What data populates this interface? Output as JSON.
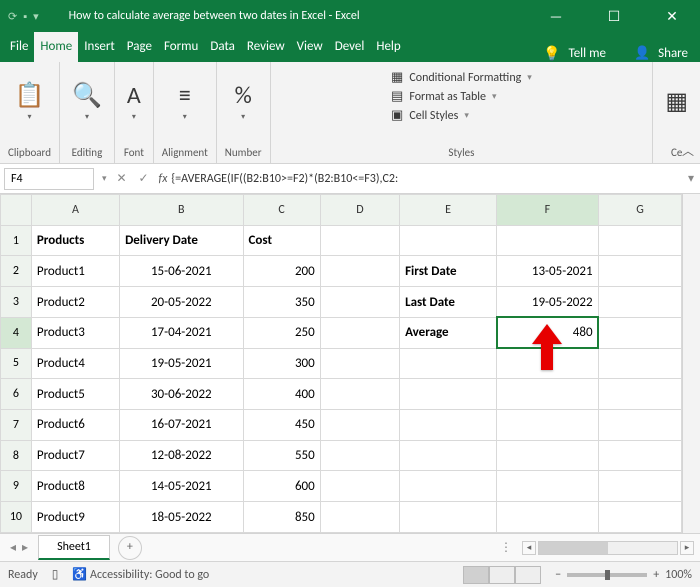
{
  "titlebar": {
    "title": "How to calculate average between two dates in Excel  -  Excel",
    "autosave_icon": "⟳",
    "save_icon": "💾"
  },
  "menubar": {
    "items": [
      "File",
      "Home",
      "Insert",
      "Page",
      "Formu",
      "Data",
      "Review",
      "View",
      "Devel",
      "Help"
    ],
    "active_index": 1,
    "tellme": "Tell me",
    "share": "Share"
  },
  "ribbon": {
    "groups": [
      {
        "label": "Clipboard",
        "icon": "📋"
      },
      {
        "label": "Editing",
        "icon": "🔍"
      },
      {
        "label": "Font",
        "icon": "A"
      },
      {
        "label": "Alignment",
        "icon": "≡"
      },
      {
        "label": "Number",
        "icon": "%"
      }
    ],
    "styles": {
      "cond": "Conditional Formatting",
      "table": "Format as Table",
      "cell": "Cell Styles",
      "label": "Styles"
    },
    "cells_label": "Ce"
  },
  "fxbar": {
    "namebox": "F4",
    "formula": "{=AVERAGE(IF((B2:B10>=F2)*(B2:B10<=F3),C2:"
  },
  "grid": {
    "columns": [
      "A",
      "B",
      "C",
      "D",
      "E",
      "F",
      "G"
    ],
    "col_classes": [
      "col-A",
      "col-B",
      "col-C",
      "col-D",
      "col-E",
      "col-F",
      "col-G"
    ],
    "selected_col": "F",
    "selected_row": 4,
    "data": {
      "headers": {
        "A": "Products",
        "B": "Delivery Date",
        "C": "Cost"
      },
      "rows": [
        {
          "A": "Product1",
          "B": "15-06-2021",
          "C": "200"
        },
        {
          "A": "Product2",
          "B": "20-05-2022",
          "C": "350"
        },
        {
          "A": "Product3",
          "B": "17-04-2021",
          "C": "250"
        },
        {
          "A": "Product4",
          "B": "19-05-2021",
          "C": "300"
        },
        {
          "A": "Product5",
          "B": "30-06-2022",
          "C": "400"
        },
        {
          "A": "Product6",
          "B": "16-07-2021",
          "C": "450"
        },
        {
          "A": "Product7",
          "B": "12-08-2022",
          "C": "550"
        },
        {
          "A": "Product8",
          "B": "14-05-2021",
          "C": "600"
        },
        {
          "A": "Product9",
          "B": "18-05-2022",
          "C": "850"
        }
      ],
      "side": {
        "2": {
          "E": "First Date",
          "F": "13-05-2021"
        },
        "3": {
          "E": "Last Date",
          "F": "19-05-2022"
        },
        "4": {
          "E": "Average",
          "F": "480"
        }
      }
    }
  },
  "sheettabs": {
    "active": "Sheet1"
  },
  "status": {
    "ready": "Ready",
    "accessibility": "Accessibility: Good to go",
    "zoom": "100%"
  },
  "colors": {
    "brand": "#0f7a3f",
    "arrow": "#e60000",
    "select": "#1a7f37"
  }
}
